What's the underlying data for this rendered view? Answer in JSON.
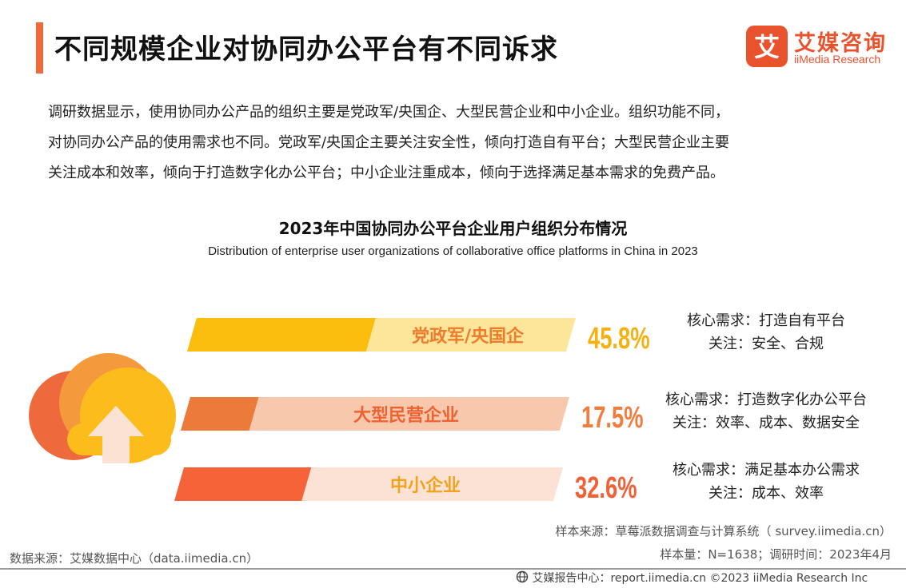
{
  "header": {
    "title": "不同规模企业对协同办公平台有不同诉求",
    "logo_cn": "艾媒咨询",
    "logo_en": "iiMedia Research",
    "logo_mark": "艾",
    "accent_color": "#ef6a3a"
  },
  "intro": {
    "lines": [
      "调研数据显示，使用协同办公产品的组织主要是党政军/央国企、大型民营企业和中小企业。组织功能不同，",
      "对协同办公产品的使用需求也不同。党政军/央国企主要关注安全性，倾向打造自有平台；大型民营企业主要",
      "关注成本和效率，倾向于打造数字化办公平台；中小企业注重成本，倾向于选择满足基本需求的免费产品。"
    ]
  },
  "chart_data": {
    "type": "bar",
    "title": "2023年中国协同办公平台企业用户组织分布情况",
    "subtitle": "Distribution of enterprise user organizations of collaborative office platforms in China in 2023",
    "categories": [
      "党政军/央国企",
      "大型民营企业",
      "中小企业"
    ],
    "values": [
      45.8,
      17.5,
      32.6
    ],
    "value_labels": [
      "45.8%",
      "17.5%",
      "32.6%"
    ],
    "ylim": [
      0,
      100
    ],
    "colors": {
      "fill": [
        "#fbbd0e",
        "#ec7a3a",
        "#f66338"
      ],
      "track": [
        "#fde69a",
        "#f8c8ad",
        "#fbe2d4"
      ],
      "label": [
        "#ef7b2c",
        "#ee6232",
        "#f2a21b"
      ],
      "value": [
        "#f5b112",
        "#f37c3c",
        "#f26035"
      ]
    },
    "annotations": [
      {
        "need": "核心需求：打造自有平台",
        "focus": "关注：安全、合规"
      },
      {
        "need": "核心需求：打造数字化办公平台",
        "focus": "关注：效率、成本、数据安全"
      },
      {
        "need": "核心需求：满足基本办公需求",
        "focus": "关注：成本、效率"
      }
    ]
  },
  "sources": {
    "sample_source": "样本来源：草莓派数据调查与计算系统（ survey.iimedia.cn）",
    "sample_size": "样本量：N=1638；调研时间：2023年4月",
    "data_source": "数据来源：艾媒数据中心（data.iimedia.cn）"
  },
  "footer": {
    "text": "艾媒报告中心：report.iimedia.cn  ©2023  iiMedia Research  Inc",
    "icon": "globe-icon"
  }
}
